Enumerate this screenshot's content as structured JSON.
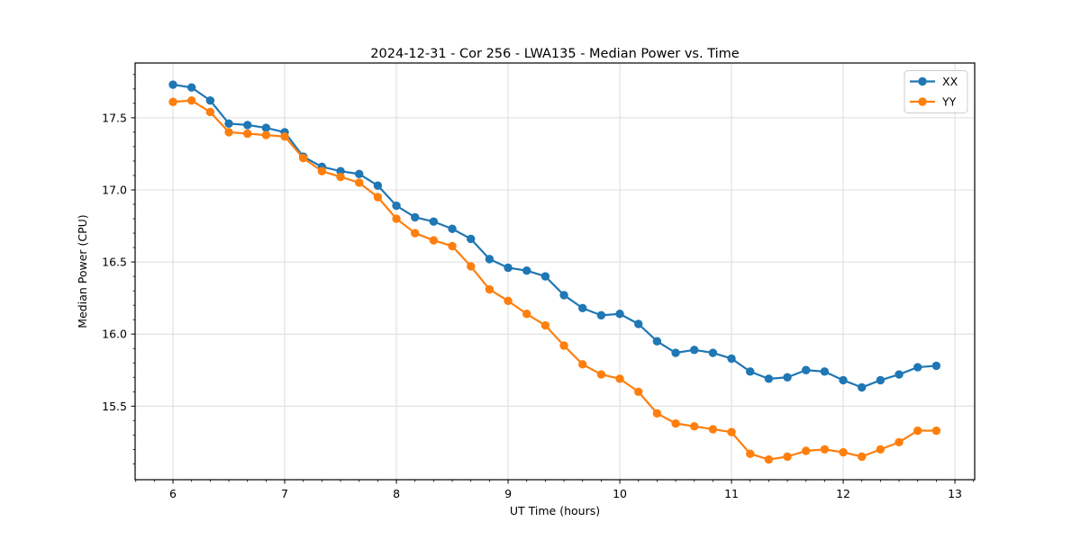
{
  "chart_data": {
    "type": "line",
    "title": "2024-12-31 - Cor 256 - LWA135 - Median Power vs. Time",
    "xlabel": "UT Time (hours)",
    "ylabel": "Median Power (CPU)",
    "xlim": [
      5.661,
      13.177
    ],
    "ylim": [
      14.99,
      17.88
    ],
    "x_major_ticks": [
      6,
      7,
      8,
      9,
      10,
      11,
      12,
      13
    ],
    "x_tick_labels": [
      "6",
      "7",
      "8",
      "9",
      "10",
      "11",
      "12",
      "13"
    ],
    "y_major_ticks": [
      15.5,
      16.0,
      16.5,
      17.0,
      17.5
    ],
    "y_tick_labels": [
      "15.5",
      "16.0",
      "16.5",
      "17.0",
      "17.5"
    ],
    "x_minor_step": 0.166667,
    "y_minor_step": 0.1,
    "grid": "major",
    "grid_color": "#dcdcdc",
    "background_color": "#ffffff",
    "legend": {
      "position": "upper-right",
      "entries": [
        {
          "label": "XX",
          "color": "#1f77b4"
        },
        {
          "label": "YY",
          "color": "#ff7f0e"
        }
      ]
    },
    "x": [
      6,
      6.1667,
      6.3333,
      6.5,
      6.6667,
      6.8333,
      7,
      7.1667,
      7.3333,
      7.5,
      7.6667,
      7.8333,
      8,
      8.1667,
      8.3333,
      8.5,
      8.6667,
      8.8333,
      9,
      9.1667,
      9.3333,
      9.5,
      9.6667,
      9.8333,
      10,
      10.1667,
      10.3333,
      10.5,
      10.6667,
      10.8333,
      11,
      11.1667,
      11.3333,
      11.5,
      11.6667,
      11.8333,
      12,
      12.1667,
      12.3333,
      12.5,
      12.6667,
      12.8333
    ],
    "series": [
      {
        "name": "XX",
        "color": "#1f77b4",
        "values": [
          17.73,
          17.71,
          17.62,
          17.46,
          17.45,
          17.43,
          17.4,
          17.23,
          17.16,
          17.13,
          17.11,
          17.03,
          16.89,
          16.81,
          16.78,
          16.73,
          16.66,
          16.52,
          16.46,
          16.44,
          16.4,
          16.27,
          16.18,
          16.13,
          16.14,
          16.07,
          15.95,
          15.87,
          15.89,
          15.87,
          15.83,
          15.74,
          15.69,
          15.7,
          15.75,
          15.74,
          15.68,
          15.63,
          15.68,
          15.72,
          15.77,
          15.78
        ]
      },
      {
        "name": "YY",
        "color": "#ff7f0e",
        "values": [
          17.61,
          17.62,
          17.54,
          17.4,
          17.39,
          17.38,
          17.37,
          17.22,
          17.13,
          17.09,
          17.05,
          16.95,
          16.8,
          16.7,
          16.65,
          16.61,
          16.47,
          16.31,
          16.23,
          16.14,
          16.06,
          15.92,
          15.79,
          15.72,
          15.69,
          15.6,
          15.45,
          15.38,
          15.36,
          15.34,
          15.32,
          15.17,
          15.13,
          15.15,
          15.19,
          15.2,
          15.18,
          15.15,
          15.2,
          15.25,
          15.33,
          15.33
        ]
      }
    ]
  }
}
